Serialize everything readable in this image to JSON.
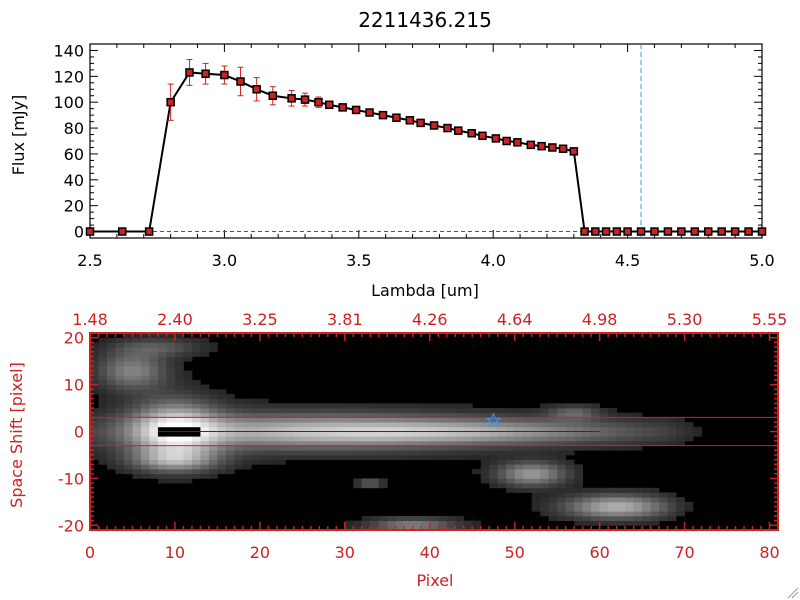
{
  "chart_data": [
    {
      "type": "line",
      "title": "2211436.215",
      "xlabel": "Lambda [um]",
      "ylabel": "Flux [mJy]",
      "xlim": [
        2.5,
        5.0
      ],
      "ylim": [
        -5,
        145
      ],
      "x_ticks": [
        "2.5",
        "3.0",
        "3.5",
        "4.0",
        "4.5",
        "5.0"
      ],
      "y_ticks": [
        "0",
        "20",
        "40",
        "60",
        "80",
        "100",
        "120",
        "140"
      ],
      "grid": false,
      "colors": {
        "line": "#000000",
        "marker": "#cc2222",
        "errorbar": "#cc2222",
        "vline": "#3399cc",
        "zero_line": "#cc2222"
      },
      "vline_x": 4.55,
      "series": [
        {
          "x": [
            2.5,
            2.62,
            2.72,
            2.8,
            2.87,
            2.93,
            3.0,
            3.06,
            3.12,
            3.18,
            3.25,
            3.3,
            3.35,
            3.39,
            3.44,
            3.49,
            3.54,
            3.59,
            3.64,
            3.69,
            3.73,
            3.78,
            3.83,
            3.87,
            3.92,
            3.96,
            4.01,
            4.05,
            4.09,
            4.14,
            4.18,
            4.22,
            4.26,
            4.3,
            4.34,
            4.38,
            4.42,
            4.46,
            4.5,
            4.55,
            4.6,
            4.65,
            4.7,
            4.75,
            4.8,
            4.85,
            4.9,
            4.95,
            5.0
          ],
          "y": [
            0,
            0,
            0,
            100,
            123,
            122,
            121,
            116,
            110,
            105,
            103,
            102,
            100,
            98,
            96,
            94,
            92,
            90,
            88,
            86,
            84,
            82,
            80,
            78,
            76,
            74,
            72,
            70,
            69,
            67,
            66,
            65,
            64,
            62,
            0,
            0,
            0,
            0,
            0,
            0,
            0,
            0,
            0,
            0,
            0,
            0,
            0,
            0,
            0
          ],
          "err": [
            0,
            0,
            0,
            14,
            10,
            8,
            7,
            11,
            9,
            7,
            6,
            5,
            4,
            0,
            0,
            0,
            0,
            0,
            0,
            0,
            0,
            0,
            0,
            0,
            0,
            0,
            0,
            0,
            0,
            0,
            0,
            0,
            0,
            0,
            0,
            0,
            0,
            0,
            0,
            0,
            0,
            0,
            0,
            0,
            0,
            0,
            0,
            0,
            0
          ]
        }
      ]
    },
    {
      "type": "heatmap",
      "title": "",
      "xlabel": "Pixel",
      "ylabel": "Space Shift [pixel]",
      "xlim": [
        0,
        81
      ],
      "ylim": [
        -21,
        21
      ],
      "x_ticks": [
        "0",
        "10",
        "20",
        "30",
        "40",
        "50",
        "60",
        "70",
        "80"
      ],
      "top_ticks": [
        "1.48",
        "2.40",
        "3.25",
        "3.81",
        "4.26",
        "4.64",
        "4.98",
        "5.30",
        "5.55"
      ],
      "y_ticks": [
        "-20",
        "-10",
        "0",
        "10",
        "20"
      ],
      "colors": {
        "frame": "#cc2222",
        "hlines": "#cc2222",
        "star": "#3399ff",
        "background": "#000000"
      },
      "hlines": [
        3,
        -3
      ],
      "star": [
        47.5,
        2.3
      ],
      "blobs": [
        {
          "x": 25,
          "y": 0,
          "wx": 22,
          "wy": 4,
          "v": 0.55
        },
        {
          "x": 45,
          "y": 0,
          "wx": 22,
          "wy": 2.6,
          "v": 0.45
        },
        {
          "x": 10,
          "y": 0.5,
          "wx": 5,
          "wy": 6,
          "v": 0.75
        },
        {
          "x": 5,
          "y": 13,
          "wx": 4,
          "wy": 4,
          "v": 0.45
        },
        {
          "x": 10,
          "y": -6,
          "wx": 5,
          "wy": 2.5,
          "v": 0.5
        },
        {
          "x": 8,
          "y": 18,
          "wx": 5,
          "wy": 2,
          "v": 0.25
        },
        {
          "x": 52,
          "y": -9,
          "wx": 4,
          "wy": 2.5,
          "v": 0.55
        },
        {
          "x": 62,
          "y": -16,
          "wx": 6,
          "wy": 2.5,
          "v": 0.65
        },
        {
          "x": 38,
          "y": -20,
          "wx": 5,
          "wy": 1.5,
          "v": 0.45
        },
        {
          "x": 57,
          "y": 4,
          "wx": 3,
          "wy": 1.5,
          "v": 0.3
        },
        {
          "x": 33,
          "y": -11,
          "wx": 1.5,
          "wy": 1,
          "v": 0.3
        }
      ],
      "black_core": {
        "x": [
          8,
          13
        ],
        "y": [
          -1,
          1.3
        ]
      }
    }
  ]
}
